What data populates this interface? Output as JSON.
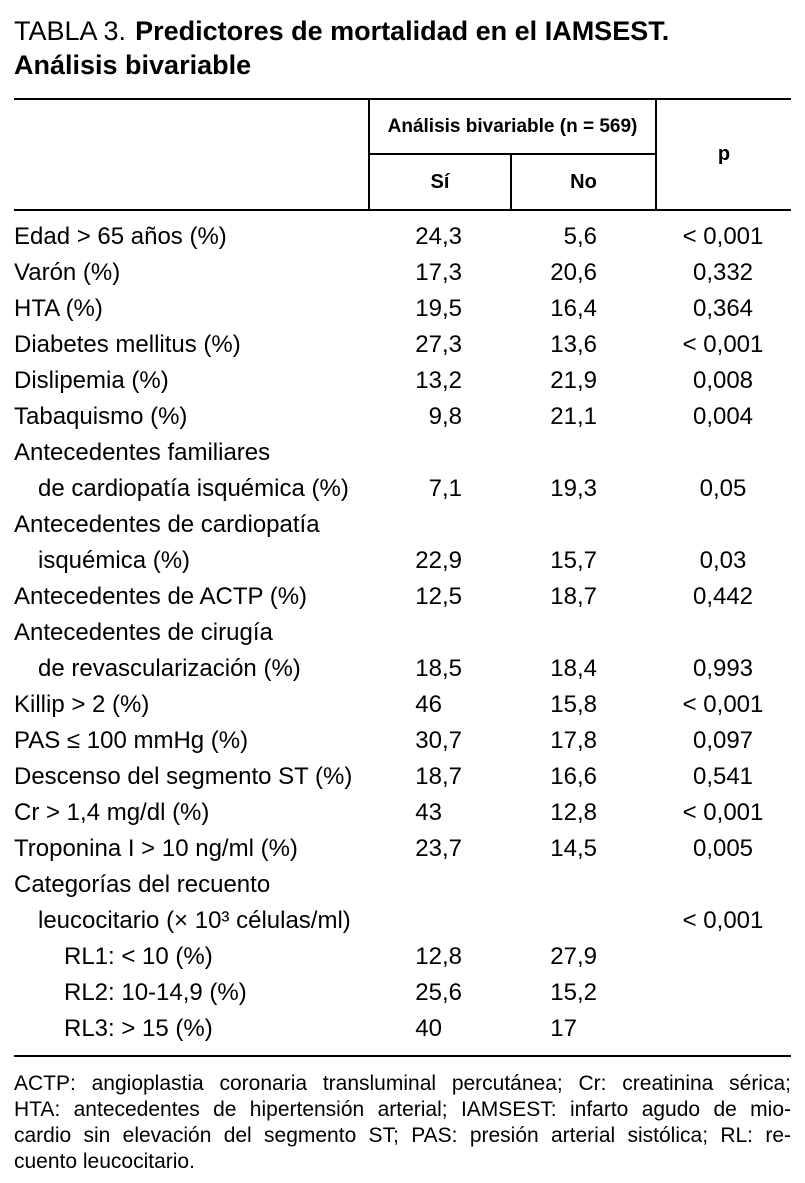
{
  "title": {
    "number": "TABLA 3.",
    "text": "Predictores de mortalidad en el IAMSEST. Análisis bivariable"
  },
  "table": {
    "group_header": "Análisis bivariable (n = 569)",
    "columns": {
      "si": "Sí",
      "no": "No",
      "p": "p"
    },
    "rows": [
      {
        "label_lines": [
          "Edad > 65 años (%)"
        ],
        "si": "24,3",
        "no": "5,6",
        "p": "< 0,001"
      },
      {
        "label_lines": [
          "Varón (%)"
        ],
        "si": "17,3",
        "no": "20,6",
        "p": "0,332"
      },
      {
        "label_lines": [
          "HTA (%)"
        ],
        "si": "19,5",
        "no": "16,4",
        "p": "0,364"
      },
      {
        "label_lines": [
          "Diabetes mellitus (%)"
        ],
        "si": "27,3",
        "no": "13,6",
        "p": "< 0,001"
      },
      {
        "label_lines": [
          "Dislipemia (%)"
        ],
        "si": "13,2",
        "no": "21,9",
        "p": "0,008"
      },
      {
        "label_lines": [
          "Tabaquismo (%)"
        ],
        "si": "9,8",
        "no": "21,1",
        "p": "0,004"
      },
      {
        "label_lines": [
          "Antecedentes familiares",
          "de cardiopatía isquémica (%)"
        ],
        "si": "7,1",
        "no": "19,3",
        "p": "0,05"
      },
      {
        "label_lines": [
          "Antecedentes de cardiopatía",
          "isquémica (%)"
        ],
        "si": "22,9",
        "no": "15,7",
        "p": "0,03"
      },
      {
        "label_lines": [
          "Antecedentes de ACTP (%)"
        ],
        "si": "12,5",
        "no": "18,7",
        "p": "0,442"
      },
      {
        "label_lines": [
          "Antecedentes de cirugía",
          "de revascularización (%)"
        ],
        "si": "18,5",
        "no": "18,4",
        "p": "0,993"
      },
      {
        "label_lines": [
          "Killip > 2 (%)"
        ],
        "si": "46",
        "no": "15,8",
        "p": "< 0,001"
      },
      {
        "label_lines": [
          "PAS ≤ 100 mmHg (%)"
        ],
        "si": "30,7",
        "no": "17,8",
        "p": "0,097"
      },
      {
        "label_lines": [
          "Descenso del segmento ST (%)"
        ],
        "si": "18,7",
        "no": "16,6",
        "p": "0,541"
      },
      {
        "label_lines": [
          "Cr > 1,4 mg/dl (%)"
        ],
        "si": "43",
        "no": "12,8",
        "p": "< 0,001"
      },
      {
        "label_lines": [
          "Troponina I > 10 ng/ml (%)"
        ],
        "si": "23,7",
        "no": "14,5",
        "p": "0,005"
      },
      {
        "label_lines": [
          "Categorías del recuento",
          "leucocitario (× 10³ células/ml)"
        ],
        "si": "",
        "no": "",
        "p": "< 0,001"
      },
      {
        "label_lines": [
          "RL1: < 10 (%)"
        ],
        "indent": 2,
        "si": "12,8",
        "no": "27,9",
        "p": ""
      },
      {
        "label_lines": [
          "RL2: 10-14,9 (%)"
        ],
        "indent": 2,
        "si": "25,6",
        "no": "15,2",
        "p": ""
      },
      {
        "label_lines": [
          "RL3: > 15 (%)"
        ],
        "indent": 2,
        "si": "40",
        "no": "17",
        "p": ""
      }
    ]
  },
  "footnote": {
    "lines": [
      "ACTP: angioplastia coronaria transluminal percutánea; Cr: creatinina sérica;",
      "HTA: antecedentes de hipertensión arterial; IAMSEST: infarto agudo de mio-",
      "cardio sin elevación del segmento ST; PAS: presión arterial sistólica; RL: re-",
      "cuento leucocitario."
    ]
  }
}
